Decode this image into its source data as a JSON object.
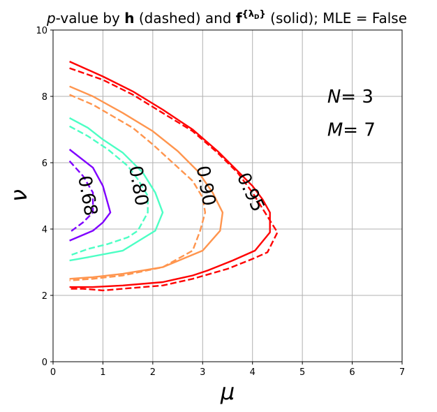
{
  "chart_data": {
    "type": "line",
    "title": {
      "italic_prefix": "p",
      "part1": "-value by ",
      "bold_h": "h",
      "part2": " (dashed) and ",
      "bold_f": "f",
      "superscript": "{λ",
      "subscript": "D",
      "superscript_close": "}",
      "part3": " (solid); MLE = False"
    },
    "xlabel": "μ",
    "ylabel": "ν",
    "xlim": [
      0,
      7
    ],
    "ylim": [
      0,
      10
    ],
    "xticks": [
      "0",
      "1",
      "2",
      "3",
      "4",
      "5",
      "6",
      "7"
    ],
    "yticks": [
      "0",
      "2",
      "4",
      "6",
      "8",
      "10"
    ],
    "grid": true,
    "annotations": [
      {
        "label": "N",
        "value": "= 3",
        "x": 5.5,
        "y": 8.0
      },
      {
        "label": "M",
        "value": "= 7",
        "x": 5.5,
        "y": 7.0
      }
    ],
    "contour_labels": [
      {
        "text": "0.68",
        "x": 0.68,
        "y": 5.0,
        "rotation": 80
      },
      {
        "text": "0.80",
        "x": 1.7,
        "y": 5.3,
        "rotation": 80
      },
      {
        "text": "0.90",
        "x": 3.05,
        "y": 5.3,
        "rotation": 80
      },
      {
        "text": "0.95",
        "x": 3.95,
        "y": 5.1,
        "rotation": 65
      }
    ],
    "series": [
      {
        "level": "0.68",
        "style": "solid",
        "color": "#7f00ff",
        "x": [
          0.33,
          0.8,
          1.0,
          1.15,
          1.0,
          0.8,
          0.33
        ],
        "y": [
          6.4,
          5.85,
          5.3,
          4.5,
          4.2,
          3.95,
          3.65
        ]
      },
      {
        "level": "0.68",
        "style": "dashed",
        "color": "#7f00ff",
        "x": [
          0.33,
          0.6,
          0.8,
          0.8,
          0.6,
          0.33
        ],
        "y": [
          6.05,
          5.6,
          5.1,
          4.5,
          4.2,
          3.9
        ]
      },
      {
        "level": "0.80",
        "style": "solid",
        "color": "#4cffc4",
        "x": [
          0.33,
          0.7,
          1.0,
          1.4,
          1.8,
          2.05,
          2.2,
          2.05,
          1.4,
          0.7,
          0.33
        ],
        "y": [
          7.35,
          7.05,
          6.7,
          6.3,
          5.7,
          5.1,
          4.5,
          3.95,
          3.35,
          3.15,
          3.05
        ]
      },
      {
        "level": "0.80",
        "style": "dashed",
        "color": "#4cffc4",
        "x": [
          0.33,
          0.7,
          1.1,
          1.5,
          1.7,
          1.9,
          1.9,
          1.7,
          1.5,
          1.1,
          0.7,
          0.33
        ],
        "y": [
          7.1,
          6.8,
          6.4,
          5.9,
          5.5,
          5.0,
          4.5,
          3.95,
          3.75,
          3.55,
          3.4,
          3.2
        ]
      },
      {
        "level": "0.90",
        "style": "solid",
        "color": "#ff954e",
        "x": [
          0.33,
          0.8,
          1.4,
          2.0,
          2.5,
          2.9,
          3.2,
          3.4,
          3.35,
          3.0,
          2.2,
          1.4,
          0.8,
          0.33
        ],
        "y": [
          8.3,
          8.0,
          7.5,
          6.95,
          6.35,
          5.75,
          5.1,
          4.5,
          3.95,
          3.35,
          2.85,
          2.65,
          2.55,
          2.5
        ]
      },
      {
        "level": "0.90",
        "style": "dashed",
        "color": "#ff954e",
        "x": [
          0.33,
          0.8,
          1.6,
          2.0,
          2.4,
          2.8,
          3.0,
          3.05,
          2.95,
          2.8,
          2.2,
          1.4,
          0.8,
          0.33
        ],
        "y": [
          8.05,
          7.75,
          7.05,
          6.55,
          6.0,
          5.45,
          4.95,
          4.5,
          3.95,
          3.35,
          2.85,
          2.6,
          2.5,
          2.45
        ]
      },
      {
        "level": "0.95",
        "style": "solid",
        "color": "#ff0000",
        "x": [
          0.33,
          1.0,
          1.6,
          2.2,
          2.8,
          3.3,
          3.7,
          4.0,
          4.2,
          4.35,
          4.35,
          4.05,
          3.6,
          3.1,
          2.8,
          2.2,
          1.4,
          0.8,
          0.33
        ],
        "y": [
          9.05,
          8.6,
          8.15,
          7.6,
          7.0,
          6.35,
          5.75,
          5.3,
          4.9,
          4.5,
          3.9,
          3.35,
          3.05,
          2.75,
          2.6,
          2.4,
          2.3,
          2.25,
          2.25
        ]
      },
      {
        "level": "0.95",
        "style": "dashed",
        "color": "#ff0000",
        "x": [
          0.33,
          1.0,
          1.6,
          2.2,
          2.8,
          3.3,
          3.7,
          4.0,
          4.25,
          4.5,
          4.3,
          4.0,
          3.5,
          2.8,
          2.2,
          1.4,
          1.0,
          0.6,
          0.33
        ],
        "y": [
          8.85,
          8.5,
          8.05,
          7.5,
          6.95,
          6.3,
          5.7,
          5.1,
          4.5,
          3.9,
          3.3,
          3.1,
          2.8,
          2.5,
          2.3,
          2.2,
          2.15,
          2.2,
          2.2
        ]
      }
    ]
  }
}
